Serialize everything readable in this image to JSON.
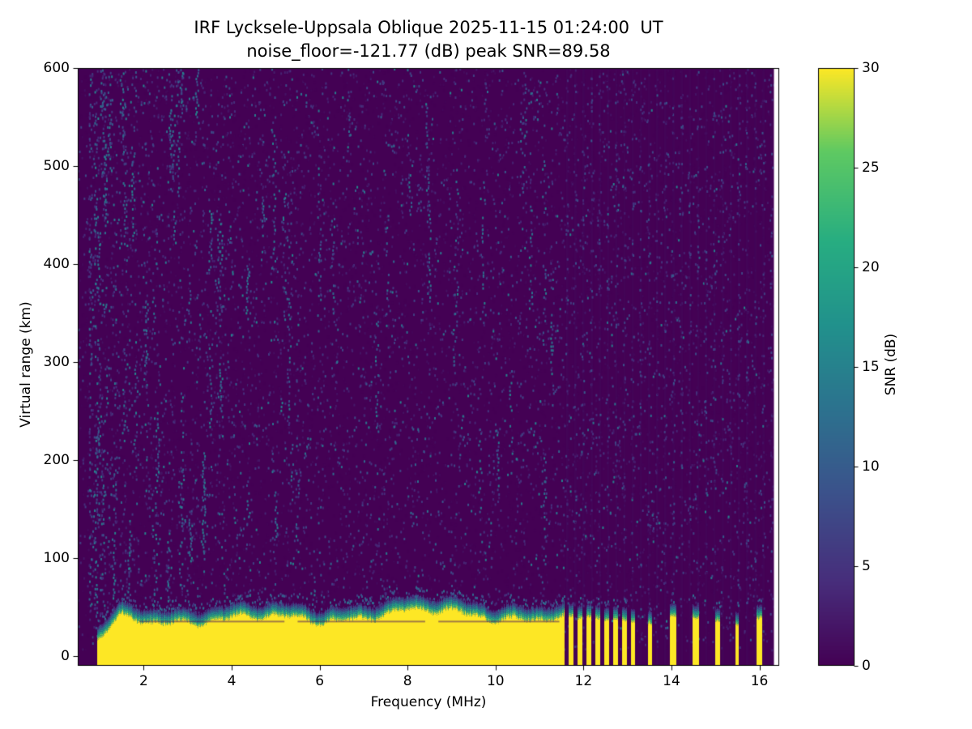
{
  "chart_data": {
    "type": "heatmap",
    "title": "IRF Lycksele-Uppsala Oblique 2025-11-15 01:24:00  UT",
    "subtitle": "noise_floor=-121.77 (dB) peak SNR=89.58",
    "station": "IRF Lycksele-Uppsala Oblique",
    "timestamp_ut": "2025-11-15 01:24:00",
    "noise_floor_db": -121.77,
    "peak_snr_db": 89.58,
    "xlabel": "Frequency (MHz)",
    "ylabel": "Virtual range (km)",
    "colorbar_label": "SNR (dB)",
    "colormap": "viridis",
    "grid": false,
    "legend": "colorbar-right",
    "x_range": [
      0.5,
      16.45
    ],
    "y_range": [
      -10,
      600
    ],
    "color_range": [
      0,
      30
    ],
    "x_ticks": [
      2,
      4,
      6,
      8,
      10,
      12,
      14,
      16
    ],
    "y_ticks": [
      0,
      100,
      200,
      300,
      400,
      500,
      600
    ],
    "colorbar_ticks": [
      0,
      5,
      10,
      15,
      20,
      25,
      30
    ],
    "features": {
      "ground_pulse_band": {
        "f_start_mhz": 0.95,
        "f_end_mhz": 11.55,
        "top_km": 50,
        "solid_top_km": 37,
        "bottom_km": -10,
        "bump_center_mhz": 8.6,
        "bump_km": 7,
        "snr_db": 30,
        "lacuna_km": 36,
        "lacuna_segments_mhz": [
          [
            1.9,
            5.2
          ],
          [
            5.5,
            8.4
          ],
          [
            8.7,
            11.45
          ]
        ]
      },
      "stepped_pulses": [
        {
          "f": 11.72,
          "top": 54,
          "w": 6
        },
        {
          "f": 11.92,
          "top": 52,
          "w": 6
        },
        {
          "f": 12.12,
          "top": 53,
          "w": 6
        },
        {
          "f": 12.33,
          "top": 51,
          "w": 6
        },
        {
          "f": 12.53,
          "top": 49,
          "w": 6
        },
        {
          "f": 12.73,
          "top": 51,
          "w": 6
        },
        {
          "f": 12.93,
          "top": 49,
          "w": 6
        },
        {
          "f": 13.13,
          "top": 47,
          "w": 5
        },
        {
          "f": 13.52,
          "top": 46,
          "w": 5
        },
        {
          "f": 14.03,
          "top": 54,
          "w": 8
        },
        {
          "f": 14.55,
          "top": 52,
          "w": 8
        },
        {
          "f": 15.05,
          "top": 49,
          "w": 6
        },
        {
          "f": 15.5,
          "top": 44,
          "w": 4
        },
        {
          "f": 16.0,
          "top": 51,
          "w": 7
        }
      ],
      "echo_streaks": [
        {
          "f": 3.2,
          "r0": 545,
          "r1": 600
        },
        {
          "f": 2.85,
          "r0": 560,
          "r1": 600
        },
        {
          "f": 2.05,
          "r0": 300,
          "r1": 365
        },
        {
          "f": 3.5,
          "r0": 395,
          "r1": 455
        },
        {
          "f": 2.3,
          "r0": 180,
          "r1": 250
        },
        {
          "f": 4.35,
          "r0": 345,
          "r1": 400
        },
        {
          "f": 5.0,
          "r0": 120,
          "r1": 170
        },
        {
          "f": 3.05,
          "r0": 95,
          "r1": 140
        },
        {
          "f": 1.75,
          "r0": 430,
          "r1": 520
        },
        {
          "f": 2.6,
          "r0": 495,
          "r1": 560
        },
        {
          "f": 3.75,
          "r0": 245,
          "r1": 300
        },
        {
          "f": 1.3,
          "r0": 60,
          "r1": 120
        },
        {
          "f": 4.7,
          "r0": 430,
          "r1": 470
        },
        {
          "f": 3.35,
          "r0": 100,
          "r1": 210
        }
      ],
      "noise_description": "scattered 2-16 dB speckle, denser below 6 MHz; faint periodic vertical striping above 11.6 MHz"
    },
    "render": {
      "seed": 1337,
      "faint_speckles": 9000,
      "bright_speckles": 2600,
      "random_streaks": 90,
      "stripe_start_mhz": 11.62,
      "stripe_end_mhz": 16.3,
      "stripe_spacing_mhz": 0.186,
      "data_gap_right_mhz": 16.33
    }
  },
  "colors": {
    "background": "#ffffff",
    "axis": "#000000",
    "viridis_min": "#440154",
    "viridis_max": "#fde725"
  }
}
